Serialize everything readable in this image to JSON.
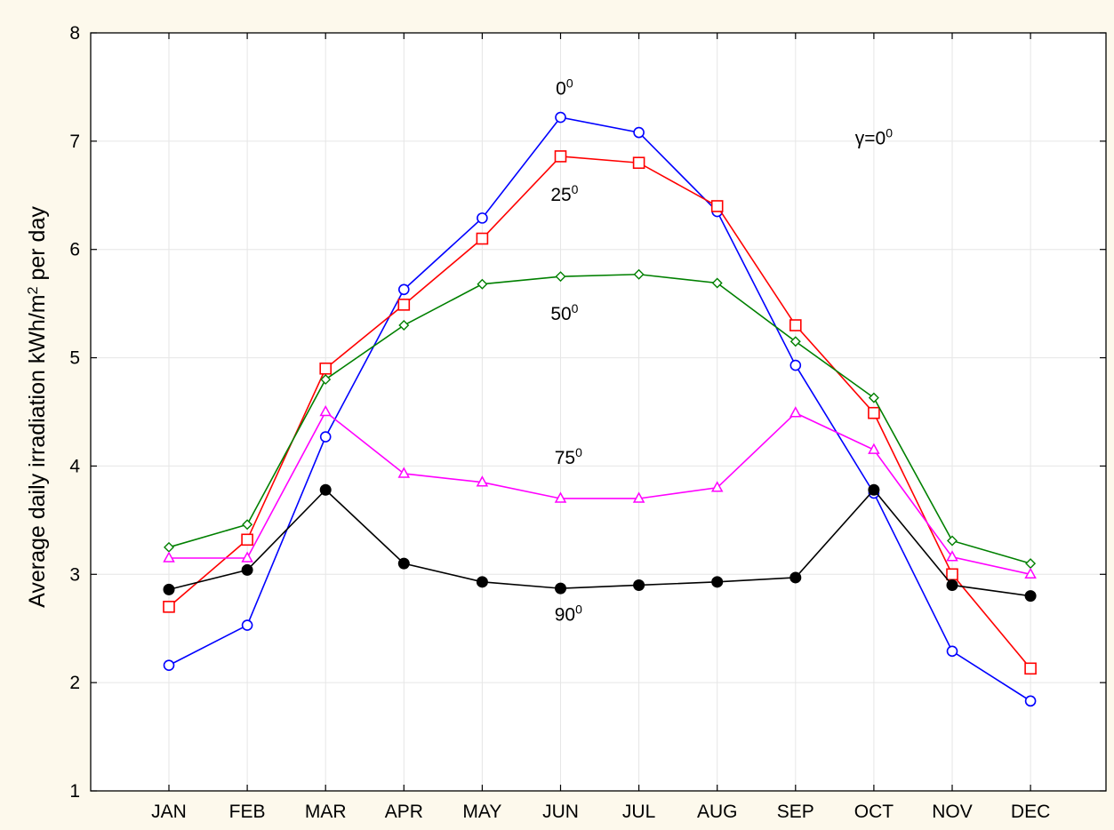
{
  "chart_data": {
    "type": "line",
    "categories": [
      "JAN",
      "FEB",
      "MAR",
      "APR",
      "MAY",
      "JUN",
      "JUL",
      "AUG",
      "SEP",
      "OCT",
      "NOV",
      "DEC"
    ],
    "ylim": [
      1,
      8
    ],
    "yticks": [
      1,
      2,
      3,
      4,
      5,
      6,
      7,
      8
    ],
    "grid": true,
    "ylabel": {
      "prefix": "Average daily irradiation    kWh/m",
      "sup": "2",
      "suffix": " per day"
    },
    "series": [
      {
        "label": "0",
        "color": "#0000ff",
        "marker": "circle-open",
        "values": [
          2.16,
          2.53,
          4.27,
          5.63,
          6.29,
          7.22,
          7.08,
          6.35,
          4.93,
          3.75,
          2.29,
          1.83
        ]
      },
      {
        "label": "25",
        "color": "#ff0000",
        "marker": "square-open",
        "values": [
          2.7,
          3.32,
          4.9,
          5.49,
          6.1,
          6.86,
          6.8,
          6.4,
          5.3,
          4.49,
          3.0,
          2.13
        ]
      },
      {
        "label": "50",
        "color": "#008000",
        "marker": "diamond-open",
        "values": [
          3.25,
          3.46,
          4.8,
          5.3,
          5.68,
          5.75,
          5.77,
          5.69,
          5.15,
          4.63,
          3.31,
          3.1
        ]
      },
      {
        "label": "75",
        "color": "#ff00ff",
        "marker": "triangle-open",
        "values": [
          3.15,
          3.15,
          4.5,
          3.93,
          3.85,
          3.7,
          3.7,
          3.8,
          4.49,
          4.15,
          3.16,
          3.0
        ]
      },
      {
        "label": "90",
        "color": "#000000",
        "marker": "circle-filled",
        "values": [
          2.86,
          3.04,
          3.78,
          3.1,
          2.93,
          2.87,
          2.9,
          2.93,
          2.97,
          3.78,
          2.9,
          2.8
        ]
      }
    ],
    "annotations": [
      {
        "text": "0",
        "sup": "0",
        "x": 5.05,
        "y": 7.43
      },
      {
        "text": "25",
        "sup": "0",
        "x": 5.05,
        "y": 6.45
      },
      {
        "text": "50",
        "sup": "0",
        "x": 5.05,
        "y": 5.35
      },
      {
        "text": "75",
        "sup": "0",
        "x": 5.1,
        "y": 4.02
      },
      {
        "text": "90",
        "sup": "0",
        "x": 5.1,
        "y": 2.57
      },
      {
        "text": "γ=0",
        "sup": "0",
        "x": 9.0,
        "y": 6.97
      }
    ]
  }
}
